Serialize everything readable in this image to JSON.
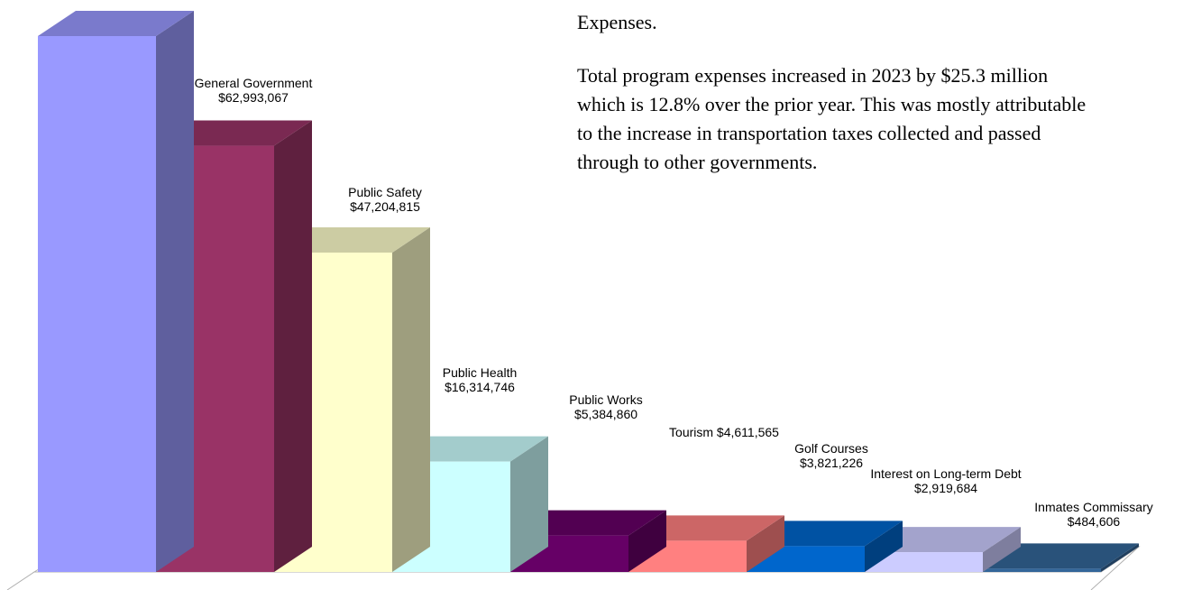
{
  "text": {
    "heading": "Expenses.",
    "paragraph": "Total program expenses increased in 2023 by $25.3 million which is 12.8% over the prior year. This was mostly attributable to the increase in transportation taxes collected and passed through to other governments."
  },
  "chart_data": {
    "type": "bar",
    "categories": [
      "",
      "General Government",
      "Public Safety",
      "Public Health",
      "Public Works",
      "Tourism",
      "Golf Courses",
      "Interest on Long-term Debt",
      "Inmates Commissary"
    ],
    "values": [
      79200000,
      62993067,
      47204815,
      16314746,
      5384860,
      4611565,
      3821226,
      2919684,
      484606
    ],
    "value_labels": [
      "",
      "$62,993,067",
      "$47,204,815",
      "$16,314,746",
      "$5,384,860",
      "$4,611,565",
      "$3,821,226",
      "$2,919,684",
      "$484,606"
    ],
    "colors": [
      "#9999ff",
      "#993366",
      "#ffffcc",
      "#ccffff",
      "#660066",
      "#ff8080",
      "#0066cc",
      "#ccccff",
      "#336699"
    ],
    "style": "3d"
  }
}
